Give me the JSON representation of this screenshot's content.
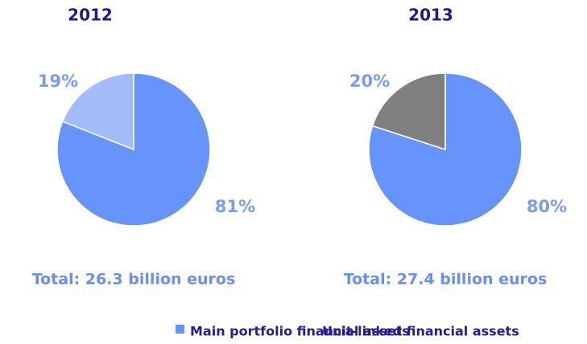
{
  "chart_data": [
    {
      "type": "pie",
      "title": "2012",
      "categories": [
        "Main portfolio financial assets",
        "Unit-linked financial assets"
      ],
      "values": [
        81,
        19
      ],
      "value_labels": [
        "81%",
        "19%"
      ],
      "colors": [
        "#6694fb",
        "#a3bcfc"
      ],
      "annotation": "Total: 26.3 billion euros"
    },
    {
      "type": "pie",
      "title": "2013",
      "categories": [
        "Main portfolio financial assets",
        "Unit-linked financial assets"
      ],
      "values": [
        80,
        20
      ],
      "value_labels": [
        "80%",
        "20%"
      ],
      "colors": [
        "#6694fb",
        "#808080"
      ],
      "annotation": "Total: 27.4 billion euros"
    }
  ]
}
